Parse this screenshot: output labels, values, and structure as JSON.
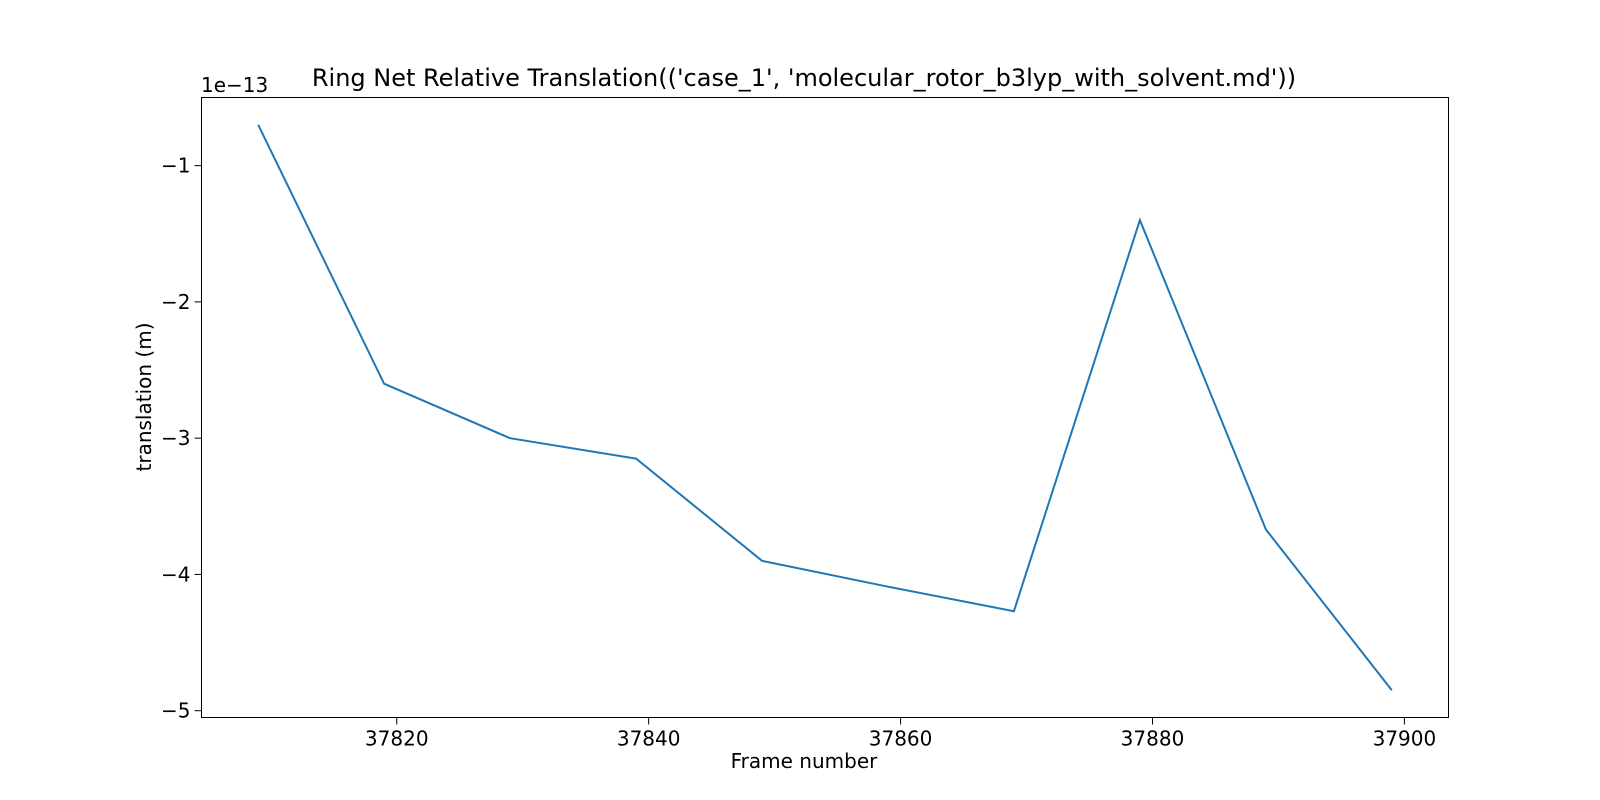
{
  "chart_data": {
    "type": "line",
    "title": "Ring Net Relative Translation(('case_1', 'molecular_rotor_b3lyp_with_solvent.md'))",
    "xlabel": "Frame number",
    "ylabel": "translation (m)",
    "offset_label": "1e−13",
    "x_ticks": [
      37820,
      37840,
      37860,
      37880,
      37900
    ],
    "x_tick_labels": [
      "37820",
      "37840",
      "37860",
      "37880",
      "37900"
    ],
    "y_ticks": [
      -1,
      -2,
      -3,
      -4,
      -5
    ],
    "y_tick_labels": [
      "−1",
      "−2",
      "−3",
      "−4",
      "−5"
    ],
    "xlim": [
      37804.5,
      37903.5
    ],
    "ylim": [
      -5.05,
      -0.5
    ],
    "y_scale_factor": "1e-13",
    "grid": false,
    "series": [
      {
        "color": "#1f77b4",
        "x": [
          37809,
          37819,
          37829,
          37839,
          37849,
          37859,
          37869,
          37879,
          37889,
          37899
        ],
        "y": [
          -0.7,
          -2.6,
          -3.0,
          -3.15,
          -3.9,
          -4.09,
          -4.27,
          -1.4,
          -3.67,
          -4.85
        ]
      }
    ]
  }
}
